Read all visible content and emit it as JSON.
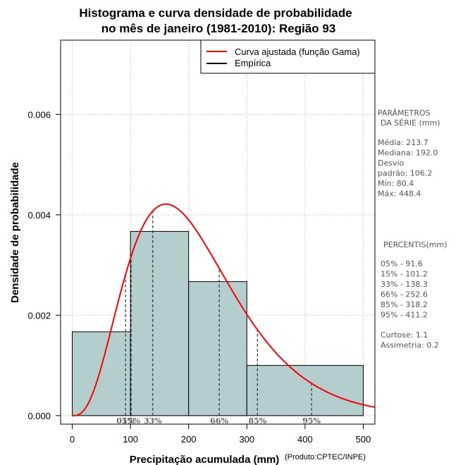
{
  "chart_data": {
    "type": "bar",
    "title_line1": "Histograma e curva densidade de probabilidade",
    "title_line2": "no mês de janeiro (1981-2010): Região 93",
    "xlabel": "Precipitação acumulada (mm)",
    "ylabel": "Densidade de probabilidade",
    "credit": "(Produto:CPTEC/INPE)",
    "xlim": [
      -20,
      520
    ],
    "ylim": [
      -0.00017,
      0.00748
    ],
    "x_ticks": [
      0,
      100,
      200,
      300,
      400,
      500
    ],
    "x_tick_labels": [
      "0",
      "100",
      "200",
      "300",
      "400",
      "500"
    ],
    "y_ticks": [
      0,
      0.002,
      0.004,
      0.006
    ],
    "y_tick_labels": [
      "0.000",
      "0.002",
      "0.004",
      "0.006"
    ],
    "bins": [
      {
        "from": 0,
        "to": 100,
        "density": 0.00167
      },
      {
        "from": 100,
        "to": 200,
        "density": 0.00367
      },
      {
        "from": 200,
        "to": 300,
        "density": 0.00267
      },
      {
        "from": 300,
        "to": 500,
        "density": 0.001
      }
    ],
    "bar_color": "#b4cdcd",
    "curve_color": "#ff0000",
    "gamma_fit": {
      "mean": 213.7,
      "sd": 106.2
    },
    "legend": [
      {
        "label": "Curva ajustada (função Gama)",
        "color": "#ff0000"
      },
      {
        "label": "Empírica",
        "color": "#000000"
      }
    ],
    "percentiles": [
      {
        "label": "05%",
        "value": 91.6
      },
      {
        "label": "15%",
        "value": 101.2
      },
      {
        "label": "33%",
        "value": 138.3
      },
      {
        "label": "66%",
        "value": 252.6
      },
      {
        "label": "85%",
        "value": 318.2
      },
      {
        "label": "95%",
        "value": 411.2
      }
    ]
  },
  "side_panel": {
    "params_title_1": "PARÂMETROS",
    "params_title_2": "DA SÉRIE (mm)",
    "stats": [
      "Média:  213.7",
      "Mediana:  192.0",
      "Desvio",
      "padrão:  106.2",
      "Mín:  80.4",
      "Máx:  448.4"
    ],
    "percentis_title": "PERCENTIS(mm)",
    "percentis_lines": [
      "05% -   91.6",
      "15% -   101.2",
      "33% -   138.3",
      "66% -   252.6",
      "85% -   318.2",
      "95% -   411.2"
    ],
    "shape_lines": [
      "Curtose:  1.1",
      "Assimetria:  0.2"
    ]
  }
}
